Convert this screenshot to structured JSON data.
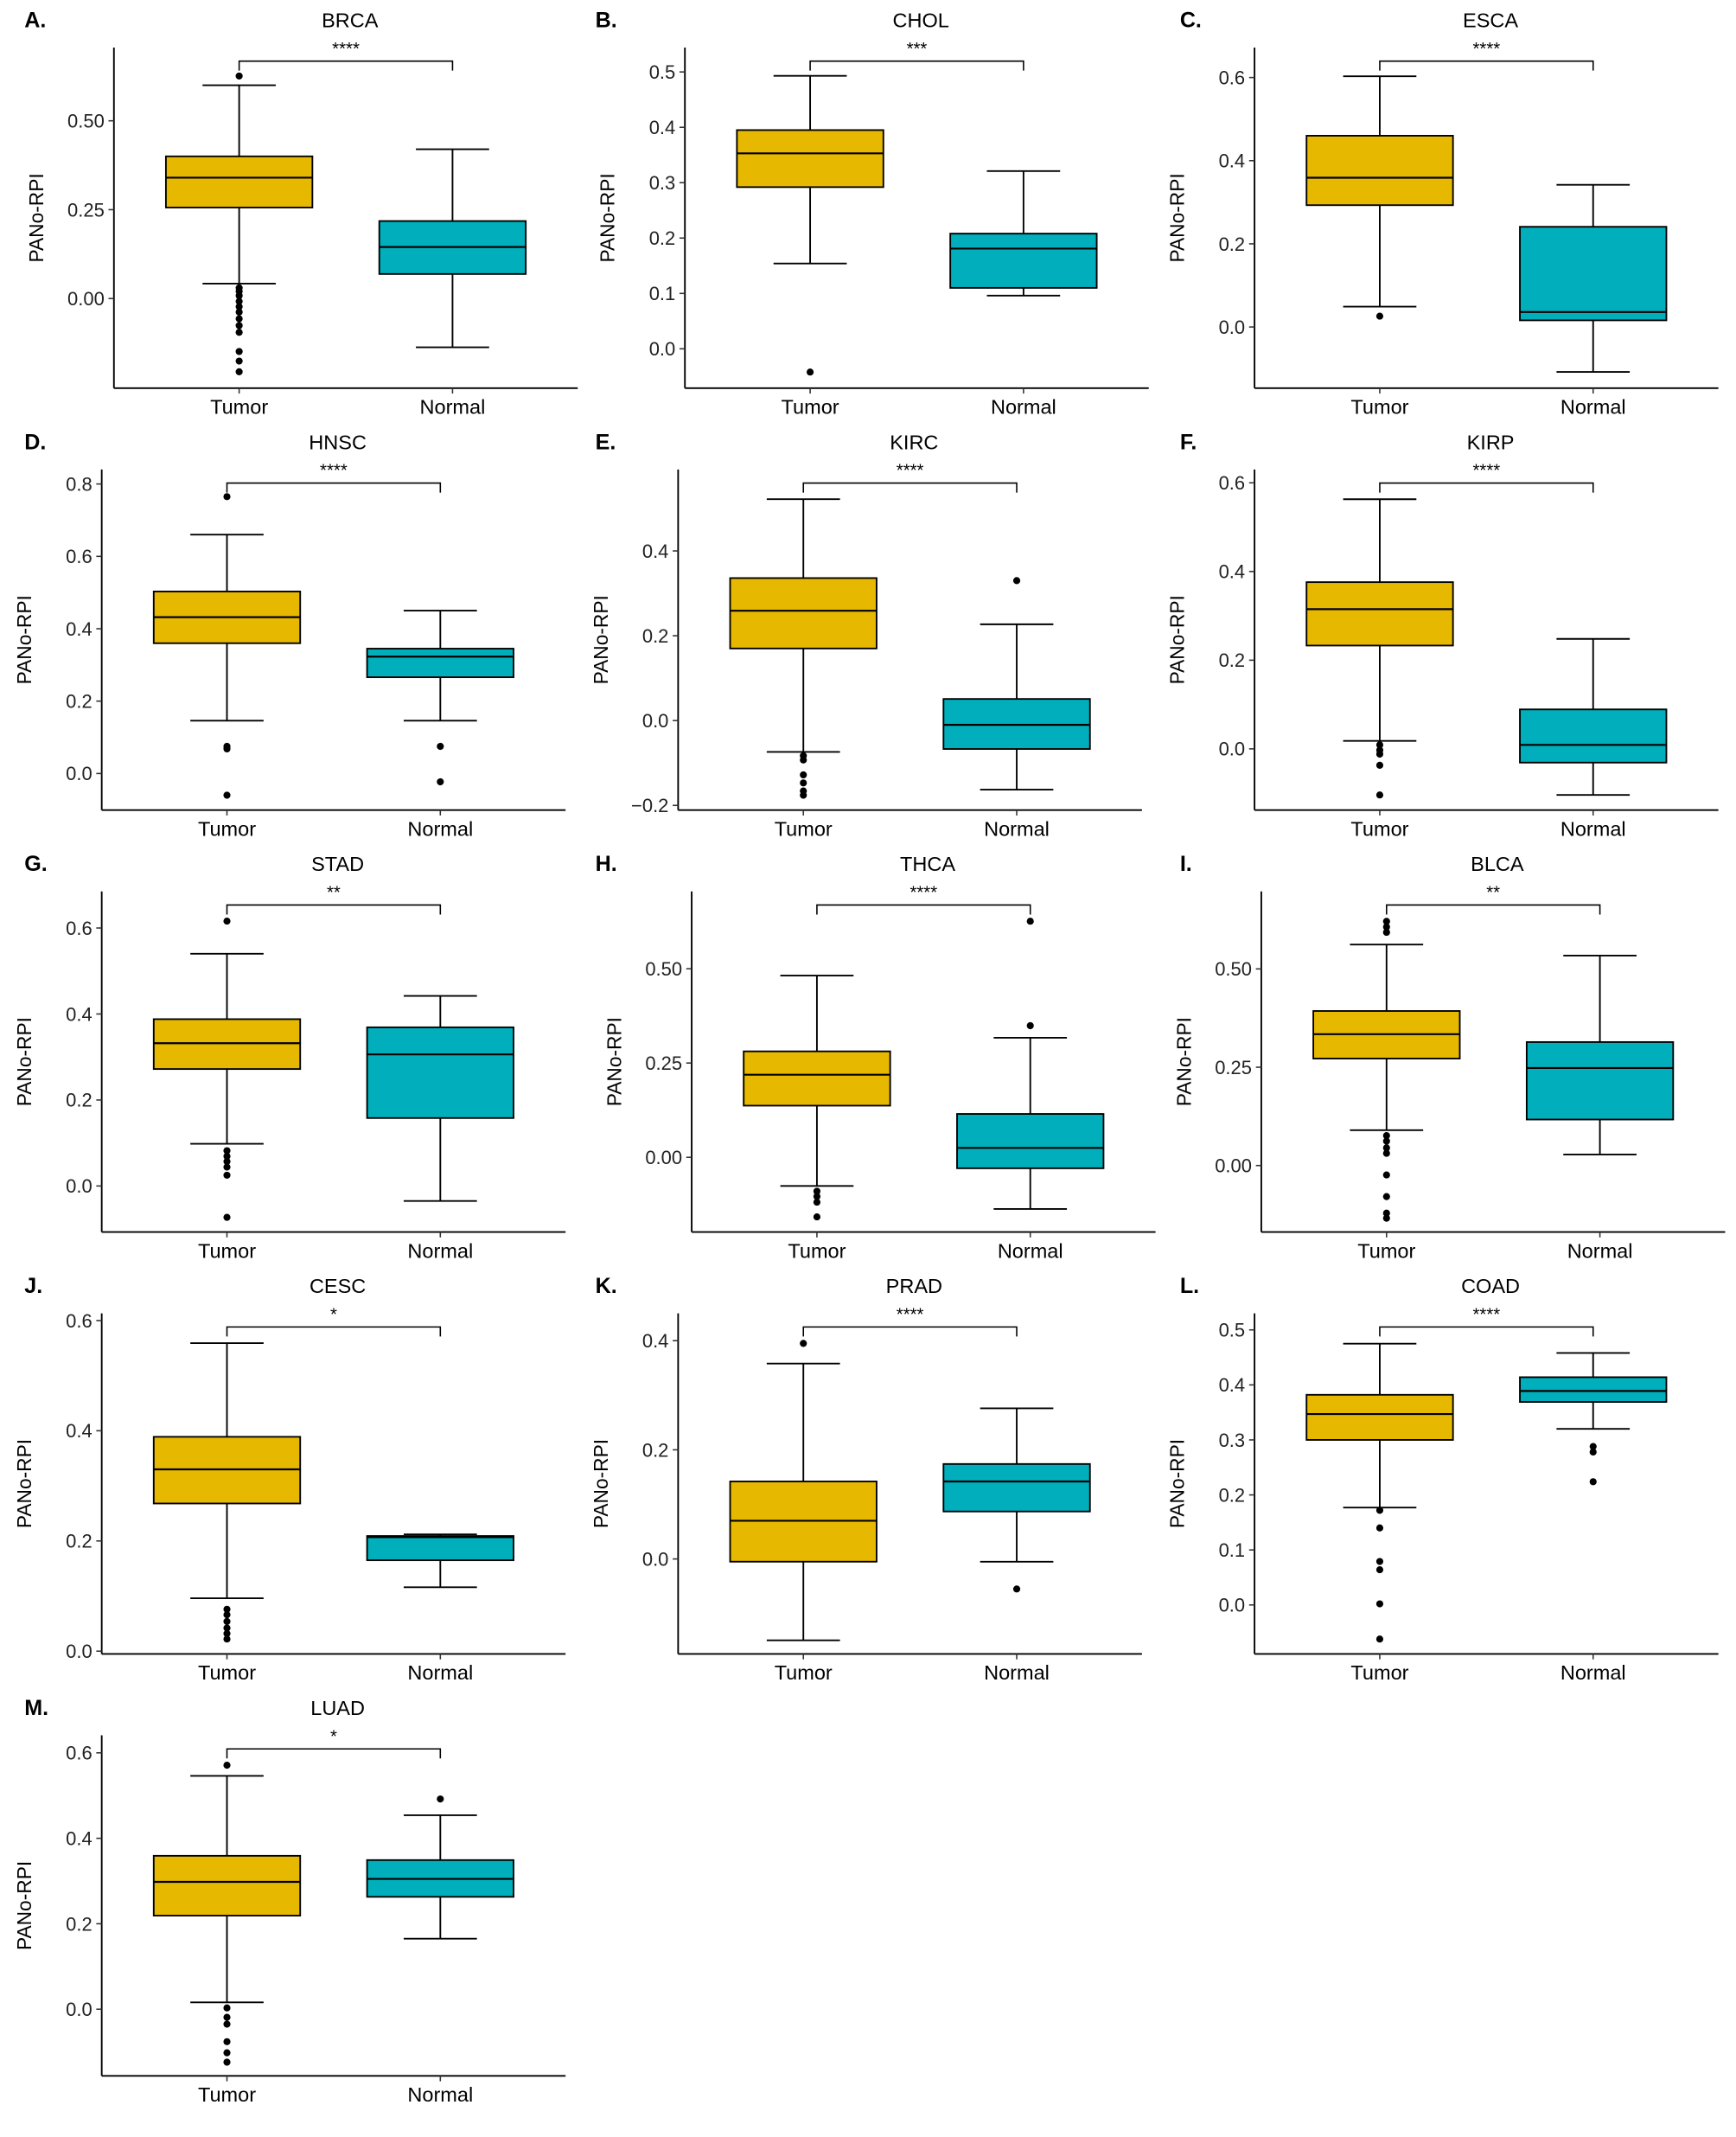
{
  "colors": {
    "Tumor": "#E7B800",
    "Normal": "#00AFBB"
  },
  "chart_data": [
    {
      "type": "box",
      "letter": "A.",
      "title": "BRCA",
      "ylabel": "PANo-RPI",
      "categories": [
        "Tumor",
        "Normal"
      ],
      "ylim": [
        -0.252,
        0.706
      ],
      "yticks": [
        0,
        0.25,
        0.5
      ],
      "ytick_labels": [
        "0.00",
        "0.25",
        "0.50"
      ],
      "significance": "****",
      "boxes": [
        {
          "group": "Tumor",
          "whisker_low": 0.042,
          "q1": 0.256,
          "median": 0.34,
          "q3": 0.4,
          "whisker_high": 0.6,
          "outliers": [
            0.626,
            0.03,
            0.02,
            0.008,
            -0.008,
            -0.023,
            -0.038,
            -0.057,
            -0.076,
            -0.095,
            -0.149,
            -0.176,
            -0.206
          ]
        },
        {
          "group": "Normal",
          "whisker_low": -0.137,
          "q1": 0.069,
          "median": 0.145,
          "q3": 0.218,
          "whisker_high": 0.42,
          "outliers": []
        }
      ]
    },
    {
      "type": "box",
      "letter": "B.",
      "title": "CHOL",
      "ylabel": "PANo-RPI",
      "categories": [
        "Tumor",
        "Normal"
      ],
      "ylim": [
        -0.071,
        0.544
      ],
      "yticks": [
        0,
        0.1,
        0.2,
        0.3,
        0.4,
        0.5
      ],
      "ytick_labels": [
        "0.0",
        "0.1",
        "0.2",
        "0.3",
        "0.4",
        "0.5"
      ],
      "significance": "***",
      "boxes": [
        {
          "group": "Tumor",
          "whisker_low": 0.154,
          "q1": 0.292,
          "median": 0.353,
          "q3": 0.395,
          "whisker_high": 0.493,
          "outliers": [
            -0.042
          ]
        },
        {
          "group": "Normal",
          "whisker_low": 0.096,
          "q1": 0.11,
          "median": 0.181,
          "q3": 0.208,
          "whisker_high": 0.321,
          "outliers": []
        }
      ]
    },
    {
      "type": "box",
      "letter": "C.",
      "title": "ESCA",
      "ylabel": "PANo-RPI",
      "categories": [
        "Tumor",
        "Normal"
      ],
      "ylim": [
        -0.147,
        0.672
      ],
      "yticks": [
        0,
        0.2,
        0.4,
        0.6
      ],
      "ytick_labels": [
        "0.0",
        "0.2",
        "0.4",
        "0.6"
      ],
      "significance": "****",
      "boxes": [
        {
          "group": "Tumor",
          "whisker_low": 0.049,
          "q1": 0.293,
          "median": 0.359,
          "q3": 0.46,
          "whisker_high": 0.603,
          "outliers": [
            0.026
          ]
        },
        {
          "group": "Normal",
          "whisker_low": -0.108,
          "q1": 0.016,
          "median": 0.036,
          "q3": 0.241,
          "whisker_high": 0.342,
          "outliers": []
        }
      ]
    },
    {
      "type": "box",
      "letter": "D.",
      "title": "HNSC",
      "ylabel": "PANo-RPI",
      "categories": [
        "Tumor",
        "Normal"
      ],
      "ylim": [
        -0.101,
        0.84
      ],
      "yticks": [
        0,
        0.2,
        0.4,
        0.6,
        0.8
      ],
      "ytick_labels": [
        "0.0",
        "0.2",
        "0.4",
        "0.6",
        "0.8"
      ],
      "significance": "****",
      "boxes": [
        {
          "group": "Tumor",
          "whisker_low": 0.146,
          "q1": 0.36,
          "median": 0.432,
          "q3": 0.503,
          "whisker_high": 0.66,
          "outliers": [
            0.765,
            0.075,
            0.068,
            -0.06
          ]
        },
        {
          "group": "Normal",
          "whisker_low": 0.146,
          "q1": 0.266,
          "median": 0.323,
          "q3": 0.345,
          "whisker_high": 0.45,
          "outliers": [
            0.075,
            -0.023
          ]
        }
      ]
    },
    {
      "type": "box",
      "letter": "E.",
      "title": "KIRC",
      "ylabel": "PANo-RPI",
      "categories": [
        "Tumor",
        "Normal"
      ],
      "ylim": [
        -0.211,
        0.592
      ],
      "yticks": [
        -0.2,
        0,
        0.2,
        0.4
      ],
      "ytick_labels": [
        "−0.2",
        "0.0",
        "0.2",
        "0.4"
      ],
      "significance": "****",
      "boxes": [
        {
          "group": "Tumor",
          "whisker_low": -0.074,
          "q1": 0.17,
          "median": 0.259,
          "q3": 0.336,
          "whisker_high": 0.522,
          "outliers": [
            -0.083,
            -0.093,
            -0.128,
            -0.147,
            -0.166,
            -0.176
          ]
        },
        {
          "group": "Normal",
          "whisker_low": -0.163,
          "q1": -0.067,
          "median": -0.01,
          "q3": 0.051,
          "whisker_high": 0.227,
          "outliers": [
            0.33
          ]
        }
      ]
    },
    {
      "type": "box",
      "letter": "F.",
      "title": "KIRP",
      "ylabel": "PANo-RPI",
      "categories": [
        "Tumor",
        "Normal"
      ],
      "ylim": [
        -0.138,
        0.63
      ],
      "yticks": [
        0,
        0.2,
        0.4,
        0.6
      ],
      "ytick_labels": [
        "0.0",
        "0.2",
        "0.4",
        "0.6"
      ],
      "significance": "****",
      "boxes": [
        {
          "group": "Tumor",
          "whisker_low": 0.018,
          "q1": 0.233,
          "median": 0.315,
          "q3": 0.376,
          "whisker_high": 0.563,
          "outliers": [
            0.009,
            -0.003,
            -0.012,
            -0.037,
            -0.104
          ]
        },
        {
          "group": "Normal",
          "whisker_low": -0.104,
          "q1": -0.031,
          "median": 0.009,
          "q3": 0.089,
          "whisker_high": 0.248,
          "outliers": []
        }
      ]
    },
    {
      "type": "box",
      "letter": "G.",
      "title": "STAD",
      "ylabel": "PANo-RPI",
      "categories": [
        "Tumor",
        "Normal"
      ],
      "ylim": [
        -0.107,
        0.685
      ],
      "yticks": [
        0,
        0.2,
        0.4,
        0.6
      ],
      "ytick_labels": [
        "0.0",
        "0.2",
        "0.4",
        "0.6"
      ],
      "significance": "**",
      "boxes": [
        {
          "group": "Tumor",
          "whisker_low": 0.098,
          "q1": 0.272,
          "median": 0.332,
          "q3": 0.388,
          "whisker_high": 0.54,
          "outliers": [
            0.616,
            0.082,
            0.069,
            0.057,
            0.044,
            0.025,
            -0.073
          ]
        },
        {
          "group": "Normal",
          "whisker_low": -0.035,
          "q1": 0.158,
          "median": 0.306,
          "q3": 0.369,
          "whisker_high": 0.442,
          "outliers": []
        }
      ]
    },
    {
      "type": "box",
      "letter": "H.",
      "title": "THCA",
      "ylabel": "PANo-RPI",
      "categories": [
        "Tumor",
        "Normal"
      ],
      "ylim": [
        -0.198,
        0.705
      ],
      "yticks": [
        0,
        0.25,
        0.5
      ],
      "ytick_labels": [
        "0.00",
        "0.25",
        "0.50"
      ],
      "significance": "****",
      "boxes": [
        {
          "group": "Tumor",
          "whisker_low": -0.076,
          "q1": 0.137,
          "median": 0.219,
          "q3": 0.281,
          "whisker_high": 0.482,
          "outliers": [
            -0.09,
            -0.104,
            -0.119,
            -0.158
          ]
        },
        {
          "group": "Normal",
          "whisker_low": -0.137,
          "q1": -0.029,
          "median": 0.025,
          "q3": 0.115,
          "whisker_high": 0.317,
          "outliers": [
            0.626,
            0.349
          ]
        }
      ]
    },
    {
      "type": "box",
      "letter": "I.",
      "title": "BLCA",
      "ylabel": "PANo-RPI",
      "categories": [
        "Tumor",
        "Normal"
      ],
      "ylim": [
        -0.169,
        0.697
      ],
      "yticks": [
        0,
        0.25,
        0.5
      ],
      "ytick_labels": [
        "0.00",
        "0.25",
        "0.50"
      ],
      "significance": "**",
      "boxes": [
        {
          "group": "Tumor",
          "whisker_low": 0.09,
          "q1": 0.272,
          "median": 0.334,
          "q3": 0.393,
          "whisker_high": 0.562,
          "outliers": [
            0.621,
            0.607,
            0.593,
            0.076,
            0.062,
            0.045,
            0.031,
            -0.024,
            -0.079,
            -0.121,
            -0.134
          ]
        },
        {
          "group": "Normal",
          "whisker_low": 0.028,
          "q1": 0.117,
          "median": 0.248,
          "q3": 0.314,
          "whisker_high": 0.534,
          "outliers": []
        }
      ]
    },
    {
      "type": "box",
      "letter": "J.",
      "title": "CESC",
      "ylabel": "PANo-RPI",
      "categories": [
        "Tumor",
        "Normal"
      ],
      "ylim": [
        -0.005,
        0.613
      ],
      "yticks": [
        0,
        0.2,
        0.4,
        0.6
      ],
      "ytick_labels": [
        "0.0",
        "0.2",
        "0.4",
        "0.6"
      ],
      "significance": "*",
      "boxes": [
        {
          "group": "Tumor",
          "whisker_low": 0.096,
          "q1": 0.268,
          "median": 0.33,
          "q3": 0.389,
          "whisker_high": 0.559,
          "outliers": [
            0.076,
            0.066,
            0.054,
            0.042,
            0.032,
            0.022
          ]
        },
        {
          "group": "Normal",
          "whisker_low": 0.116,
          "q1": 0.165,
          "median": 0.207,
          "q3": 0.209,
          "whisker_high": 0.212,
          "outliers": []
        }
      ]
    },
    {
      "type": "box",
      "letter": "K.",
      "title": "PRAD",
      "ylabel": "PANo-RPI",
      "categories": [
        "Tumor",
        "Normal"
      ],
      "ylim": [
        -0.174,
        0.45
      ],
      "yticks": [
        0,
        0.2,
        0.4
      ],
      "ytick_labels": [
        "0.0",
        "0.2",
        "0.4"
      ],
      "significance": "****",
      "boxes": [
        {
          "group": "Tumor",
          "whisker_low": -0.149,
          "q1": -0.005,
          "median": 0.07,
          "q3": 0.142,
          "whisker_high": 0.358,
          "outliers": [
            0.395
          ]
        },
        {
          "group": "Normal",
          "whisker_low": -0.005,
          "q1": 0.087,
          "median": 0.142,
          "q3": 0.174,
          "whisker_high": 0.276,
          "outliers": [
            -0.055
          ]
        }
      ]
    },
    {
      "type": "box",
      "letter": "L.",
      "title": "COAD",
      "ylabel": "PANo-RPI",
      "categories": [
        "Tumor",
        "Normal"
      ],
      "ylim": [
        -0.089,
        0.53
      ],
      "yticks": [
        0,
        0.1,
        0.2,
        0.3,
        0.4,
        0.5
      ],
      "ytick_labels": [
        "0.0",
        "0.1",
        "0.2",
        "0.3",
        "0.4",
        "0.5"
      ],
      "significance": "****",
      "boxes": [
        {
          "group": "Tumor",
          "whisker_low": 0.177,
          "q1": 0.3,
          "median": 0.347,
          "q3": 0.382,
          "whisker_high": 0.475,
          "outliers": [
            0.172,
            0.14,
            0.079,
            0.064,
            0.002,
            -0.062
          ]
        },
        {
          "group": "Normal",
          "whisker_low": 0.32,
          "q1": 0.369,
          "median": 0.389,
          "q3": 0.414,
          "whisker_high": 0.458,
          "outliers": [
            0.288,
            0.278,
            0.224
          ]
        }
      ]
    },
    {
      "type": "box",
      "letter": "M.",
      "title": "LUAD",
      "ylabel": "PANo-RPI",
      "categories": [
        "Tumor",
        "Normal"
      ],
      "ylim": [
        -0.156,
        0.641
      ],
      "yticks": [
        0,
        0.2,
        0.4,
        0.6
      ],
      "ytick_labels": [
        "0.0",
        "0.2",
        "0.4",
        "0.6"
      ],
      "significance": "*",
      "boxes": [
        {
          "group": "Tumor",
          "whisker_low": 0.016,
          "q1": 0.219,
          "median": 0.298,
          "q3": 0.359,
          "whisker_high": 0.546,
          "outliers": [
            0.571,
            0.003,
            -0.019,
            -0.035,
            -0.076,
            -0.102,
            -0.124
          ]
        },
        {
          "group": "Normal",
          "whisker_low": 0.165,
          "q1": 0.263,
          "median": 0.305,
          "q3": 0.349,
          "whisker_high": 0.454,
          "outliers": [
            0.492
          ]
        }
      ]
    }
  ]
}
